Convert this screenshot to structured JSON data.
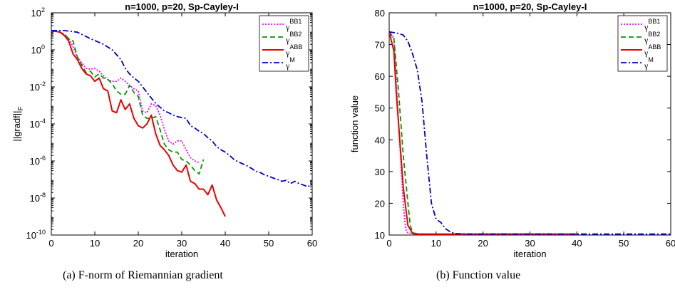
{
  "captions": {
    "a": "(a)  F-norm of Riemannian gradient",
    "b": "(b)  Function value"
  },
  "legend_entries": [
    {
      "base": "γ",
      "sup": "BB1",
      "color": "#ff00ff",
      "dash": "2,2"
    },
    {
      "base": "γ",
      "sup": "BB2",
      "color": "#009900",
      "dash": "7,4"
    },
    {
      "base": "γ",
      "sup": "ABB",
      "color": "#ee0000",
      "dash": ""
    },
    {
      "base": "γ",
      "sup": "M",
      "color": "#0000cc",
      "dash": "8,3,2,3"
    }
  ],
  "chart_data": [
    {
      "type": "line",
      "title": "n=1000, p=20, Sp-Cayley-I",
      "xlabel": "iteration",
      "ylabel": "||gradf||",
      "ylabel_sub": "F",
      "yscale": "log",
      "xlim": [
        0,
        60
      ],
      "ylim": [
        1e-10,
        100
      ],
      "xticks": [
        "0",
        "10",
        "20",
        "30",
        "40",
        "50",
        "60"
      ],
      "yticks": [
        {
          "base": "10",
          "exp": "-10"
        },
        {
          "base": "10",
          "exp": "-8"
        },
        {
          "base": "10",
          "exp": "-6"
        },
        {
          "base": "10",
          "exp": "-4"
        },
        {
          "base": "10",
          "exp": "-2"
        },
        {
          "base": "10",
          "exp": "0"
        },
        {
          "base": "10",
          "exp": "2"
        }
      ],
      "legend_position": "top-right",
      "series": [
        {
          "x": [
            0,
            1,
            2,
            3,
            4,
            5,
            6,
            7,
            8,
            9,
            10,
            11,
            12,
            13,
            14,
            15,
            16,
            17,
            18,
            19,
            20,
            21,
            22,
            23,
            24,
            25,
            26,
            27,
            28,
            29,
            30,
            31,
            32,
            33,
            34
          ],
          "y": [
            10,
            10,
            9,
            7,
            4,
            1.5,
            0.4,
            0.2,
            0.1,
            0.09,
            0.1,
            0.07,
            0.04,
            0.025,
            0.02,
            0.02,
            0.03,
            0.02,
            0.012,
            0.008,
            0.006,
            0.0005,
            0.0004,
            0.0012,
            0.001,
            0.0003,
            5e-05,
            1.2e-05,
            8e-06,
            1.2e-05,
            1.2e-05,
            4e-06,
            1.5e-06,
            1e-06,
            8e-07
          ]
        },
        {
          "x": [
            0,
            1,
            2,
            3,
            4,
            5,
            6,
            7,
            8,
            9,
            10,
            11,
            12,
            13,
            14,
            15,
            16,
            17,
            18,
            19,
            20,
            21,
            22,
            23,
            24,
            25,
            26,
            27,
            28,
            29,
            30,
            31,
            32,
            33,
            34,
            35
          ],
          "y": [
            10,
            10,
            9,
            7,
            4,
            3,
            0.4,
            0.15,
            0.06,
            0.07,
            0.035,
            0.05,
            0.03,
            0.025,
            0.015,
            0.006,
            0.004,
            0.004,
            0.012,
            0.005,
            0.003,
            0.0003,
            0.0002,
            0.0002,
            0.00025,
            5e-05,
            8e-06,
            4e-06,
            3e-06,
            3e-06,
            1.2e-06,
            1e-06,
            6e-07,
            3e-07,
            2e-07,
            1.2e-06
          ]
        },
        {
          "x": [
            0,
            1,
            2,
            3,
            4,
            5,
            6,
            7,
            8,
            9,
            10,
            11,
            12,
            13,
            14,
            15,
            16,
            17,
            18,
            19,
            20,
            21,
            22,
            23,
            24,
            25,
            26,
            27,
            28,
            29,
            30,
            31,
            32,
            33,
            34,
            35,
            36,
            37,
            38,
            39,
            40
          ],
          "y": [
            10,
            10,
            9,
            6,
            3,
            0.6,
            0.3,
            0.1,
            0.05,
            0.04,
            0.02,
            0.03,
            0.008,
            0.006,
            0.0005,
            0.0004,
            0.002,
            0.0006,
            0.0012,
            0.0002,
            8e-05,
            6e-05,
            0.0001,
            0.0003,
            3e-05,
            7e-06,
            4e-06,
            2e-06,
            6e-07,
            3e-07,
            2.5e-07,
            6e-07,
            8e-08,
            6e-08,
            3e-08,
            3e-08,
            1.5e-08,
            5e-08,
            8e-09,
            3e-09,
            1e-09
          ]
        },
        {
          "x": [
            0,
            3,
            6,
            9,
            12,
            14,
            16,
            17,
            18,
            19,
            20,
            21,
            22,
            23,
            24,
            25,
            26,
            27,
            28,
            29,
            30,
            31,
            32,
            33,
            34,
            35,
            36,
            37,
            38,
            39,
            40,
            41,
            42,
            43,
            44,
            45,
            46,
            47,
            48,
            49,
            50,
            51,
            52,
            53,
            54,
            55,
            56,
            57,
            58,
            59,
            60
          ],
          "y": [
            11,
            11,
            9,
            4,
            2,
            1,
            0.3,
            0.1,
            0.05,
            0.03,
            0.02,
            0.01,
            0.005,
            0.0025,
            0.0013,
            0.0008,
            0.0005,
            0.0004,
            0.0003,
            0.00025,
            0.00022,
            0.0002,
            8e-05,
            6e-05,
            4e-05,
            3e-05,
            1.8e-05,
            1.2e-05,
            6e-06,
            4e-06,
            3e-06,
            2e-06,
            1.2e-06,
            9e-07,
            7e-07,
            5.5e-07,
            4e-07,
            2.8e-07,
            2.4e-07,
            1.8e-07,
            1.5e-07,
            1.2e-07,
            1e-07,
            8e-08,
            9e-08,
            6e-08,
            8e-08,
            6e-08,
            5e-08,
            4e-08,
            6e-08
          ]
        }
      ]
    },
    {
      "type": "line",
      "title": "n=1000, p=20, Sp-Cayley-I",
      "xlabel": "iteration",
      "ylabel": "function value",
      "yscale": "linear",
      "xlim": [
        0,
        60
      ],
      "ylim": [
        10,
        80
      ],
      "xticks": [
        "0",
        "10",
        "20",
        "30",
        "40",
        "50",
        "60"
      ],
      "yticks": [
        "10",
        "20",
        "30",
        "40",
        "50",
        "60",
        "70",
        "80"
      ],
      "legend_position": "top-right",
      "series": [
        {
          "x": [
            0,
            1,
            2,
            3,
            3.5,
            4,
            5,
            6,
            8,
            10,
            15,
            20,
            30,
            34
          ],
          "y": [
            74,
            72,
            45,
            20,
            12,
            10.7,
            10.4,
            10.3,
            10.3,
            10.3,
            10.3,
            10.3,
            10.3,
            10.3
          ]
        },
        {
          "x": [
            0,
            1,
            2,
            3,
            4,
            4.5,
            5,
            6,
            8,
            10,
            15,
            20,
            30,
            35
          ],
          "y": [
            74,
            72,
            55,
            35,
            20,
            13,
            10.7,
            10.4,
            10.3,
            10.3,
            10.3,
            10.3,
            10.3,
            10.3
          ]
        },
        {
          "x": [
            0,
            1,
            1.5,
            2,
            3,
            4,
            5,
            6,
            10,
            20,
            30,
            40
          ],
          "y": [
            74,
            68,
            55,
            45,
            25,
            13,
            10.5,
            10.3,
            10.3,
            10.3,
            10.3,
            10.3
          ]
        },
        {
          "x": [
            0,
            2,
            3,
            4,
            5,
            6,
            7,
            8,
            9,
            10,
            11,
            12,
            13,
            14,
            16,
            20,
            30,
            40,
            50,
            60
          ],
          "y": [
            74,
            73.5,
            73,
            71,
            67,
            62,
            52,
            35,
            20,
            15,
            14,
            12,
            11,
            10.5,
            10.3,
            10.3,
            10.3,
            10.3,
            10.3,
            10.3
          ]
        }
      ]
    }
  ]
}
